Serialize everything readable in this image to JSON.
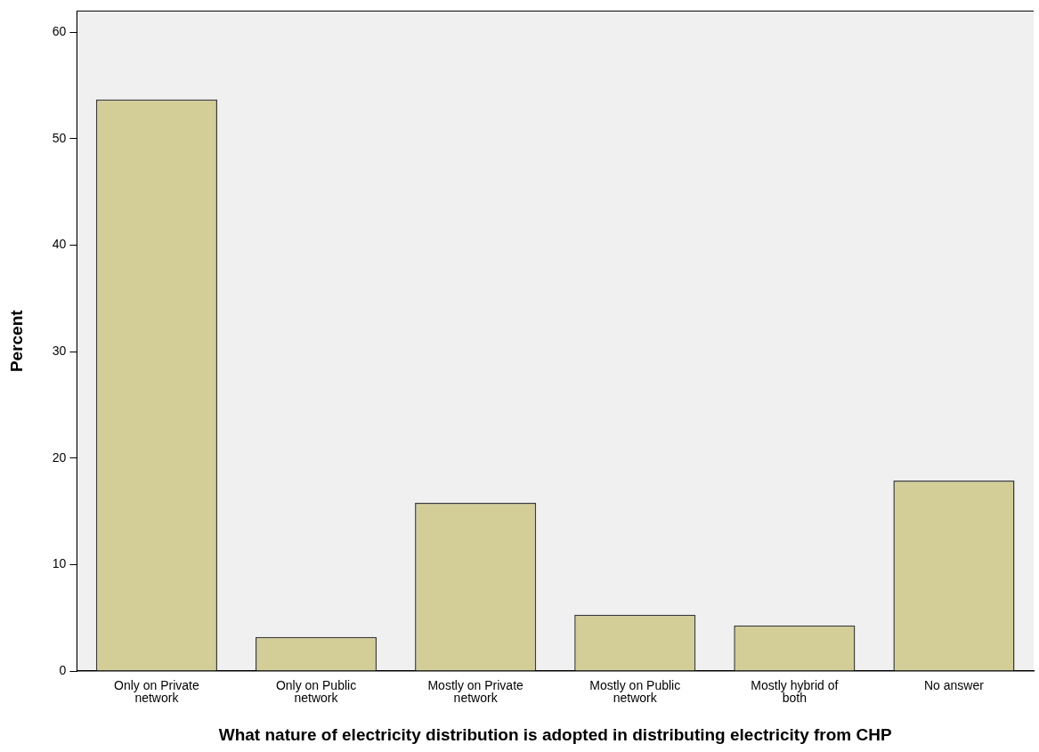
{
  "chart_data": {
    "type": "bar",
    "xlabel": "What nature of electricity distribution is adopted in distributing electricity from CHP",
    "ylabel": "Percent",
    "categories": [
      "Only on Private network",
      "Only on Public network",
      "Mostly on Private network",
      "Mostly on Public network",
      "Mostly hybrid of both",
      "No answer"
    ],
    "values": [
      53.7,
      3.2,
      15.8,
      5.3,
      4.3,
      17.9
    ],
    "color": "#d3ce97",
    "ylim": [
      0,
      62
    ],
    "yticks": [
      0,
      10,
      20,
      30,
      40,
      50,
      60
    ],
    "grid": false,
    "legend": false
  }
}
